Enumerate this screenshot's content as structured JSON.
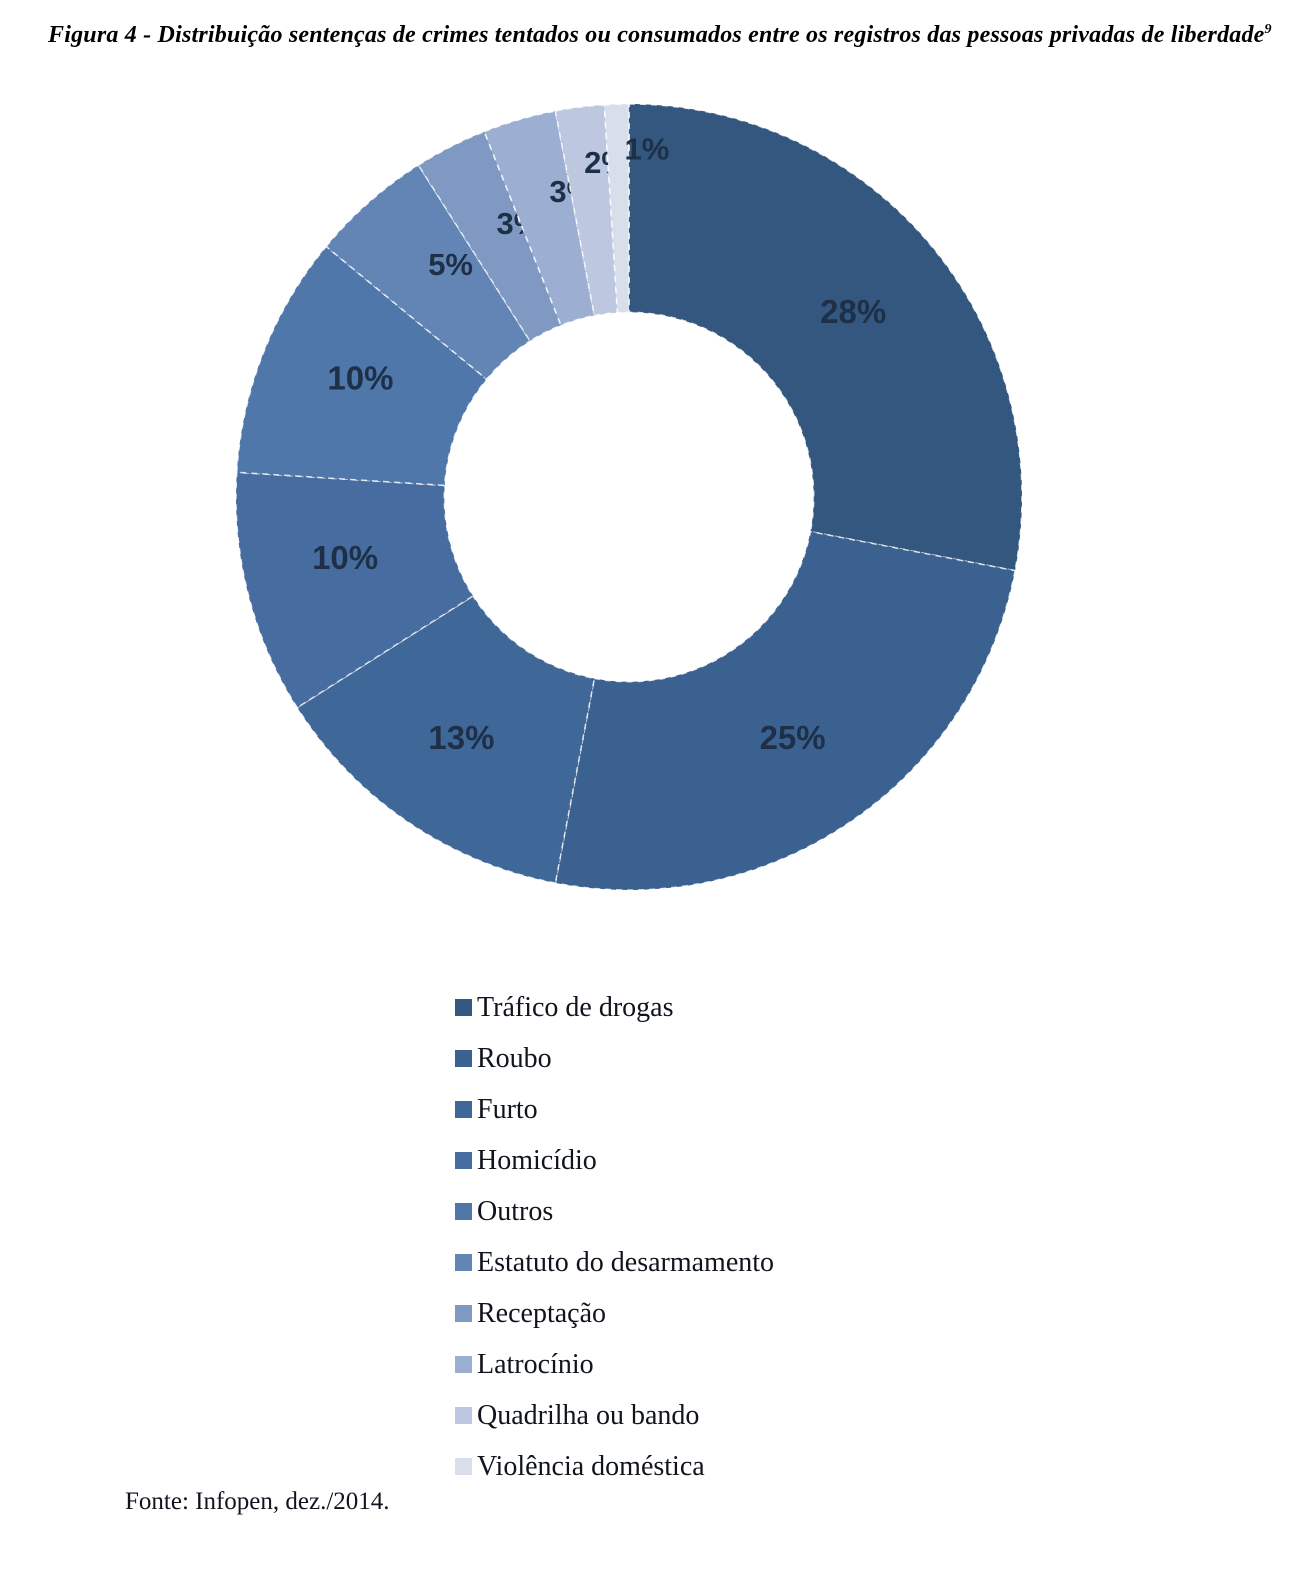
{
  "chart_data": {
    "type": "pie",
    "subtype": "donut",
    "title": "Figura 4 - Distribuição sentenças de crimes tentados ou consumados entre os registros das pessoas privadas de liberdade",
    "title_footnote_mark": "9",
    "categories": [
      "Tráfico de drogas",
      "Roubo",
      "Furto",
      "Homicídio",
      "Outros",
      "Estatuto do desarmamento",
      "Receptação",
      "Latrocínio",
      "Quadrilha ou bando",
      "Violência doméstica"
    ],
    "values": [
      28,
      25,
      13,
      10,
      10,
      5,
      3,
      3,
      2,
      1
    ],
    "percent_labels": [
      "28%",
      "25%",
      "13%",
      "10%",
      "10%",
      "5%",
      "3%",
      "3%",
      "2%",
      "1%"
    ],
    "colors": [
      "#33577e",
      "#3b6190",
      "#3f6797",
      "#476c9f",
      "#4f77a9",
      "#6285b5",
      "#7f99c3",
      "#9cafd2",
      "#bdc8e0",
      "#d8dfeb"
    ],
    "label_color": "#1e3048",
    "hole_ratio": 0.47,
    "start_angle_deg": 0,
    "direction": "clockwise",
    "legend_position": "bottom",
    "source": "Fonte: Infopen, dez./2014."
  }
}
